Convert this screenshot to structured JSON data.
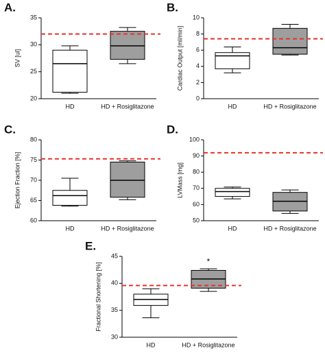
{
  "chart_data": [
    {
      "type": "box",
      "label": "A.",
      "ylabel": "SV [ul]",
      "ylim": [
        20,
        35
      ],
      "yticks": [
        20,
        25,
        30,
        35
      ],
      "reference": 32,
      "reference_color": "#e8302a",
      "categories": [
        "HD",
        "HD + Rosiglitazone"
      ],
      "boxes": [
        {
          "min": 21,
          "q1": 21.2,
          "median": 26.5,
          "q3": 29,
          "max": 29.8,
          "color": "#ffffff"
        },
        {
          "min": 26.5,
          "q1": 27.3,
          "median": 29.8,
          "q3": 32.5,
          "max": 33.2,
          "color": "#9e9e9e"
        }
      ]
    },
    {
      "type": "box",
      "label": "B.",
      "ylabel": "Cardiac Output [ml/min]",
      "ylim": [
        0,
        10
      ],
      "yticks": [
        0,
        2,
        4,
        6,
        8,
        10
      ],
      "reference": 7.4,
      "reference_color": "#e8302a",
      "categories": [
        "HD",
        "HD + Rosiglitazone"
      ],
      "boxes": [
        {
          "min": 3.2,
          "q1": 3.7,
          "median": 5.3,
          "q3": 5.7,
          "max": 6.4,
          "color": "#ffffff"
        },
        {
          "min": 5.4,
          "q1": 5.5,
          "median": 6.3,
          "q3": 8.7,
          "max": 9.2,
          "color": "#9e9e9e"
        }
      ]
    },
    {
      "type": "box",
      "label": "C.",
      "ylabel": "Ejection Fraction [%]",
      "ylim": [
        60,
        80
      ],
      "yticks": [
        60,
        65,
        70,
        75,
        80
      ],
      "reference": 75.3,
      "reference_color": "#e8302a",
      "categories": [
        "HD",
        "HD + Rosiglitazone"
      ],
      "boxes": [
        {
          "min": 63.6,
          "q1": 63.8,
          "median": 66.2,
          "q3": 67.5,
          "max": 70.5,
          "color": "#ffffff"
        },
        {
          "min": 65.2,
          "q1": 65.8,
          "median": 70,
          "q3": 74.5,
          "max": 74.8,
          "color": "#9e9e9e"
        }
      ]
    },
    {
      "type": "box",
      "label": "D.",
      "ylabel": "LVMass [mg]",
      "ylim": [
        50,
        100
      ],
      "yticks": [
        50,
        60,
        70,
        80,
        90,
        100
      ],
      "reference": 92,
      "reference_color": "#e8302a",
      "categories": [
        "HD",
        "HD + Rosiglitazone"
      ],
      "boxes": [
        {
          "min": 63.5,
          "q1": 65,
          "median": 68,
          "q3": 70,
          "max": 70.8,
          "color": "#ffffff"
        },
        {
          "min": 54.5,
          "q1": 56,
          "median": 62,
          "q3": 67.5,
          "max": 69,
          "color": "#9e9e9e"
        }
      ]
    },
    {
      "type": "box",
      "label": "E.",
      "ylabel": "Fractional Shortening [%]",
      "ylim": [
        30,
        45
      ],
      "yticks": [
        30,
        35,
        40,
        45
      ],
      "reference": 39.6,
      "reference_color": "#e8302a",
      "annotation": "*",
      "categories": [
        "HD",
        "HD + Rosiglitazone"
      ],
      "boxes": [
        {
          "min": 33.6,
          "q1": 35.9,
          "median": 37,
          "q3": 38,
          "max": 39,
          "color": "#ffffff"
        },
        {
          "min": 38.5,
          "q1": 39.1,
          "median": 40.8,
          "q3": 42.4,
          "max": 42.7,
          "color": "#9e9e9e"
        }
      ]
    }
  ]
}
